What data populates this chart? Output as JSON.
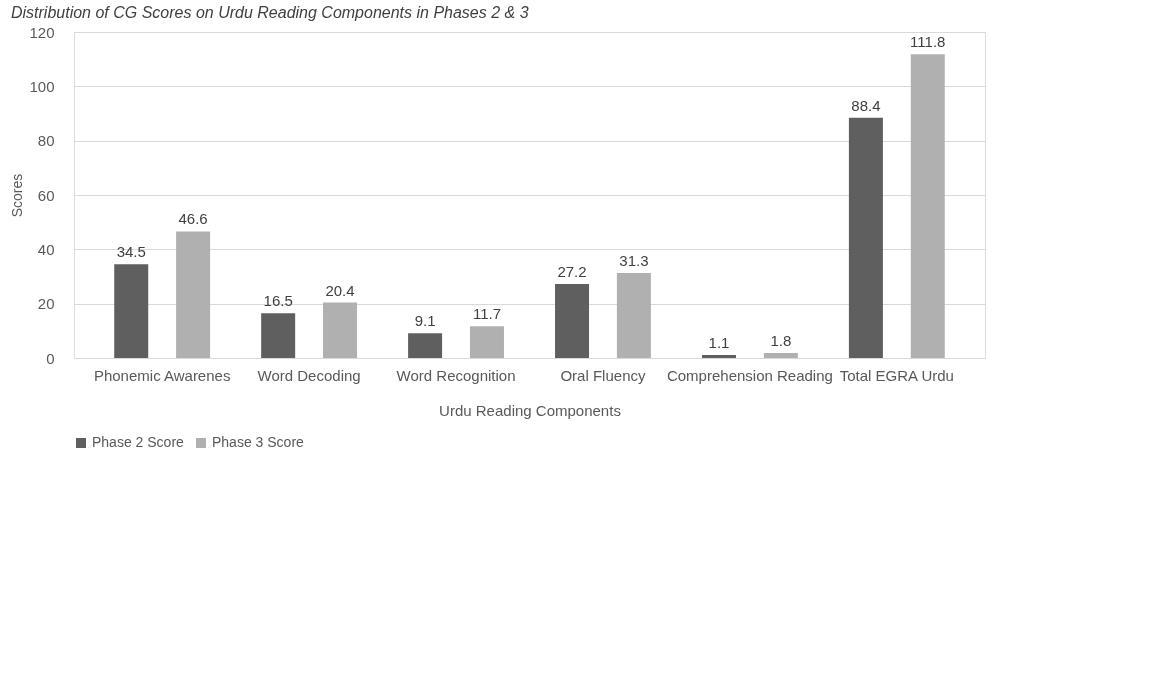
{
  "chart_data": {
    "type": "bar",
    "title": "Distribution of CG Scores on Urdu Reading Components in Phases 2 & 3",
    "xlabel": "Urdu Reading Components",
    "ylabel": "Scores",
    "categories": [
      "Phonemic Awarenes",
      "Word Decoding",
      "Word Recognition",
      "Oral Fluency",
      "Comprehension Reading",
      "Total EGRA Urdu"
    ],
    "series": [
      {
        "name": "Phase 2 Score",
        "color": "#5f5f5f",
        "values": [
          34.5,
          16.5,
          9.1,
          27.2,
          1.1,
          88.4
        ]
      },
      {
        "name": "Phase 3 Score",
        "color": "#b0b0b0",
        "values": [
          46.6,
          20.4,
          11.7,
          31.3,
          1.8,
          111.8
        ]
      }
    ],
    "ylim": [
      0,
      120
    ],
    "yticks": [
      0,
      20,
      40,
      60,
      80,
      100,
      120
    ],
    "grid": "y",
    "legend": "bottom",
    "data_labels": true
  }
}
